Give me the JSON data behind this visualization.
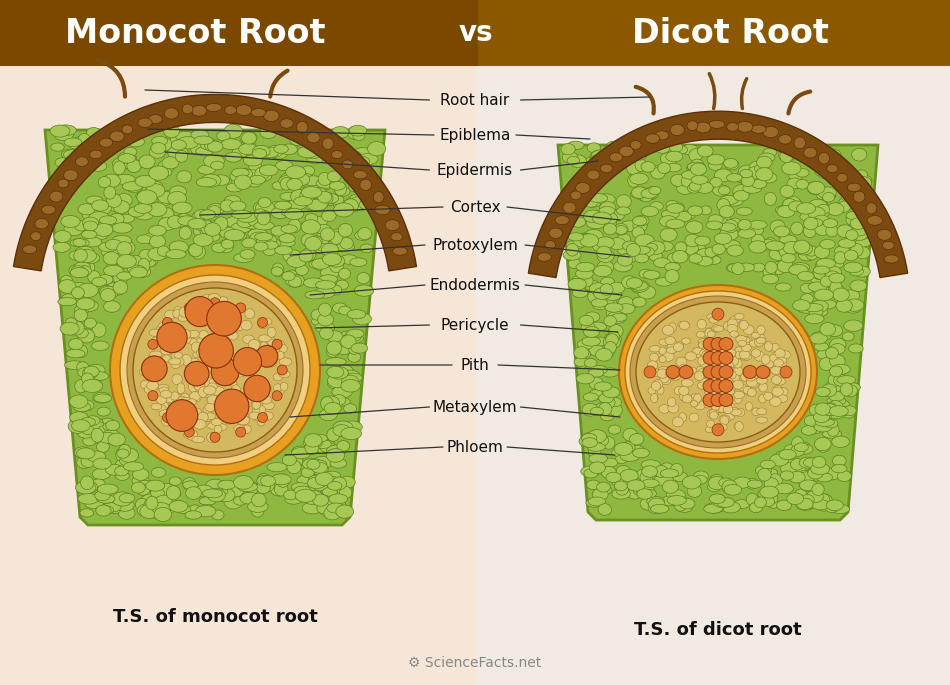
{
  "title_left": "Monocot Root",
  "title_vs": "vs",
  "title_right": "Dicot Root",
  "title_bg_left": "#7B4800",
  "title_bg_right": "#8B5800",
  "title_text_color": "#FFFFFF",
  "bg_color_left": "#F5E6D8",
  "bg_color_right": "#F0EAE2",
  "bg_overall": "#F5EDE5",
  "caption_left": "T.S. of monocot root",
  "caption_right": "T.S. of dicot root",
  "caption_color": "#111111",
  "color_brown": "#7B4A10",
  "color_brown_cell": "#8B5A18",
  "color_green_body": "#8FB840",
  "color_green_cell_fill": "#A8C855",
  "color_green_cell_edge": "#5A8020",
  "color_green_dark": "#6A9020",
  "color_orange_xylem": "#E07830",
  "color_tan_vasc": "#D4B870",
  "color_tan_light": "#E8D098",
  "color_endodermis_outer": "#E8A020",
  "color_endodermis_inner": "#F0D080",
  "color_pericycle": "#C8A050",
  "color_pith": "#D4B860",
  "color_pith_cell": "#E0C878",
  "color_phloem": "#C8A040",
  "label_color": "#111111",
  "line_color": "#333333"
}
